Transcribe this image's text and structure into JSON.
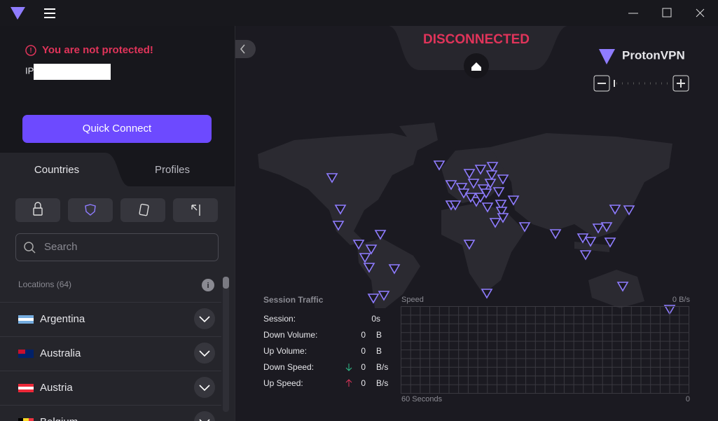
{
  "sidebar": {
    "warning": "You are not protected!",
    "ip_label": "IP",
    "quick_connect": "Quick Connect",
    "tabs": [
      "Countries",
      "Profiles"
    ],
    "search_placeholder": "Search",
    "locations_label": "Locations (64)",
    "countries": [
      "Argentina",
      "Australia",
      "Austria",
      "Belgium"
    ]
  },
  "map": {
    "status": "DISCONNECTED",
    "brand": "ProtonVPN"
  },
  "session_traffic": {
    "title": "Session Traffic",
    "rows": [
      {
        "label": "Session:",
        "value": "0s"
      },
      {
        "label": "Down Volume:",
        "value": 0,
        "unit": "B"
      },
      {
        "label": "Up Volume:",
        "value": 0,
        "unit": "B"
      },
      {
        "label": "Down Speed:",
        "value": 0,
        "unit": "B/s"
      },
      {
        "label": "Up Speed:",
        "value": 0,
        "unit": "B/s"
      }
    ]
  },
  "speed_graph": {
    "label": "Speed",
    "max_label": "0 B/s",
    "x_label": "60 Seconds",
    "end_label": "0"
  }
}
